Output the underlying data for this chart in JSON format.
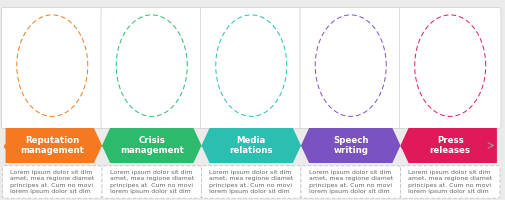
{
  "background_color": "#ebebeb",
  "steps": [
    {
      "label": "Reputation\nmanagement",
      "color": "#f47920"
    },
    {
      "label": "Crisis\nmanagement",
      "color": "#2dba6d"
    },
    {
      "label": "Media\nrelations",
      "color": "#2abfb0"
    },
    {
      "label": "Speech\nwriting",
      "color": "#7b52c1"
    },
    {
      "label": "Press\nreleases",
      "color": "#e0195a"
    }
  ],
  "lorem_text": "Lorem ipsum dolor sit dim\namet, mea regione diamet\nprincipes at. Cum no movi\nlorem ipsum dolor sit dim",
  "step_count": 5,
  "text_color": "#666666",
  "label_color": "#ffffff",
  "label_fontsize": 6.2,
  "body_fontsize": 4.5
}
